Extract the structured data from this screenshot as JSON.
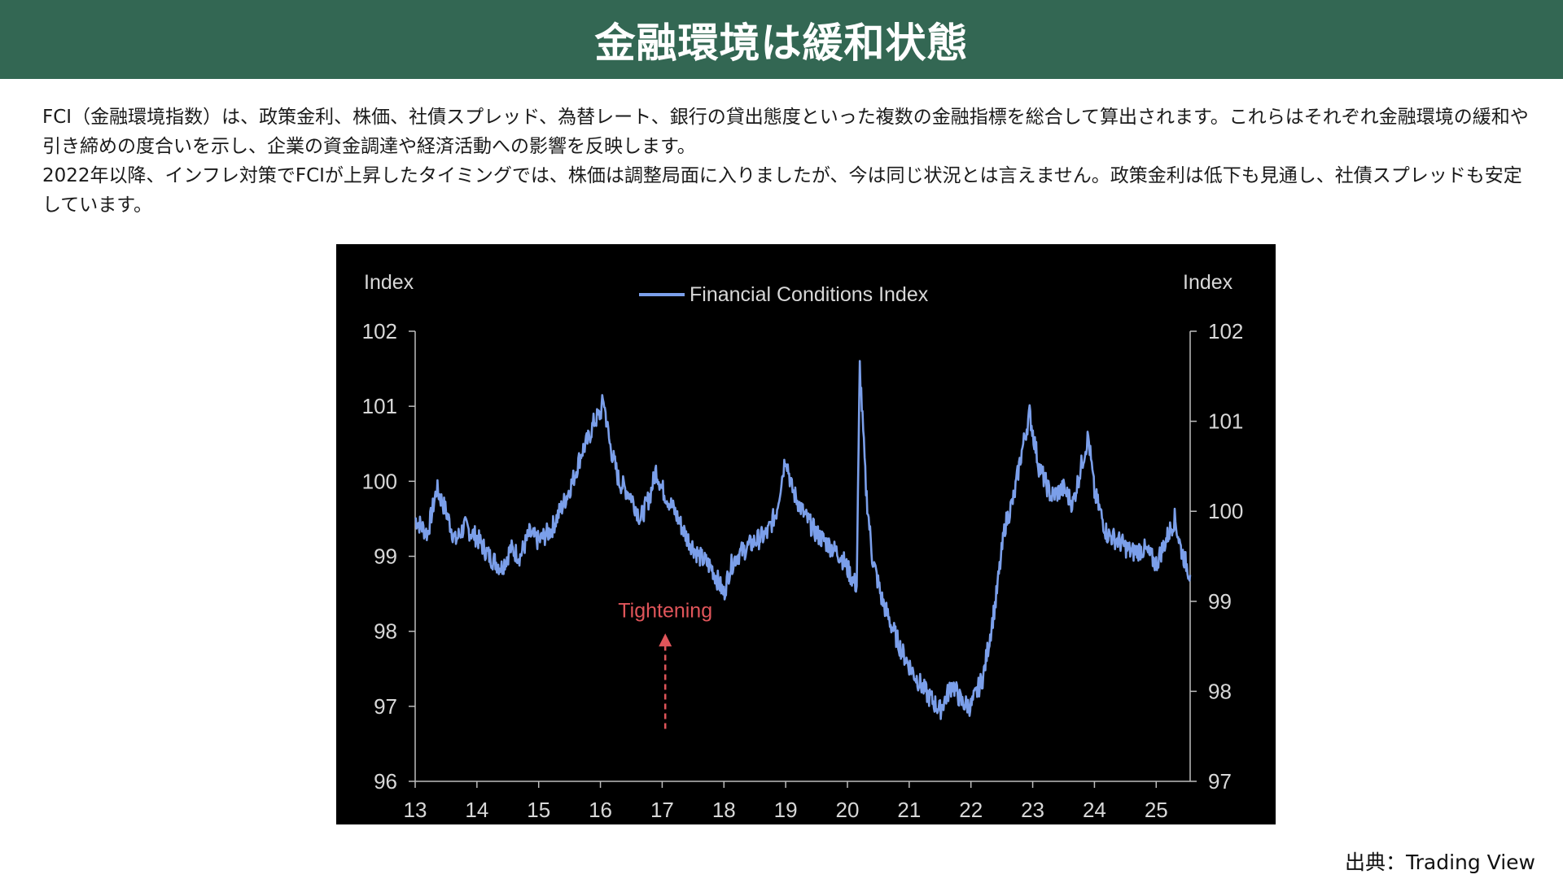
{
  "header": {
    "title": "金融環境は緩和状態"
  },
  "description": {
    "para1": "FCI（金融環境指数）は、政策金利、株価、社債スプレッド、為替レート、銀行の貸出態度といった複数の金融指標を総合して算出されます。これらはそれぞれ金融環境の緩和や引き締めの度合いを示し、企業の資金調達や経済活動への影響を反映します。",
    "para2": "2022年以降、インフレ対策でFCIが上昇したタイミングでは、株価は調整局面に入りましたが、今は同じ状況とは言えません。政策金利は低下も見通し、社債スプレッドも安定しています。"
  },
  "source": "出典：Trading View",
  "colors": {
    "header_bg": "#336753",
    "line": "#7B9FEA",
    "annotation": "#E0555A",
    "chart_bg": "#000000",
    "axis_text": "#d8d8d8"
  },
  "chart_data": {
    "type": "line",
    "title": "",
    "legend": "top-center",
    "grid": false,
    "y_left_label": "Index",
    "y_right_label": "Index",
    "y_left_range": [
      96,
      102
    ],
    "y_right_range": [
      97,
      102
    ],
    "y_left_ticks": [
      "102",
      "101",
      "100",
      "99",
      "98",
      "97",
      "96"
    ],
    "y_right_ticks": [
      "102",
      "101",
      "100",
      "99",
      "98",
      "97"
    ],
    "x_range": [
      13,
      25.55
    ],
    "x_ticks": [
      "13",
      "14",
      "15",
      "16",
      "17",
      "18",
      "19",
      "20",
      "21",
      "22",
      "23",
      "24",
      "25"
    ],
    "annotation": {
      "text": "Tightening",
      "x": 17.05,
      "arrow_from_y": 96.7,
      "arrow_to_y": 97.95
    },
    "series": [
      {
        "name": "Financial Conditions Index",
        "axis": "left",
        "x": [
          13.0,
          13.2,
          13.35,
          13.5,
          13.65,
          13.8,
          14.0,
          14.2,
          14.4,
          14.55,
          14.7,
          14.85,
          15.0,
          15.2,
          15.4,
          15.55,
          15.7,
          15.8,
          15.9,
          16.0,
          16.05,
          16.15,
          16.3,
          16.5,
          16.65,
          16.8,
          16.9,
          17.0,
          17.2,
          17.4,
          17.6,
          17.8,
          18.0,
          18.1,
          18.2,
          18.35,
          18.5,
          18.7,
          18.85,
          19.0,
          19.1,
          19.3,
          19.5,
          19.7,
          19.9,
          20.05,
          20.15,
          20.2,
          20.3,
          20.4,
          20.55,
          20.7,
          20.9,
          21.1,
          21.3,
          21.5,
          21.7,
          21.85,
          22.0,
          22.2,
          22.4,
          22.55,
          22.7,
          22.8,
          22.95,
          23.1,
          23.3,
          23.5,
          23.65,
          23.8,
          23.9,
          24.0,
          24.2,
          24.4,
          24.6,
          24.8,
          25.0,
          25.15,
          25.3,
          25.4,
          25.55
        ],
        "values": [
          99.5,
          99.3,
          99.9,
          99.6,
          99.2,
          99.4,
          99.25,
          99.0,
          98.85,
          99.1,
          99.0,
          99.3,
          99.2,
          99.35,
          99.7,
          100.0,
          100.4,
          100.55,
          100.8,
          100.9,
          101.1,
          100.5,
          100.0,
          99.8,
          99.5,
          99.8,
          100.15,
          99.9,
          99.6,
          99.25,
          99.0,
          98.85,
          98.5,
          98.85,
          99.0,
          99.1,
          99.2,
          99.3,
          99.6,
          100.35,
          99.9,
          99.55,
          99.3,
          99.15,
          99.0,
          98.75,
          98.6,
          101.55,
          99.9,
          99.0,
          98.45,
          98.1,
          97.7,
          97.4,
          97.15,
          96.95,
          97.3,
          97.05,
          97.0,
          97.4,
          98.4,
          99.4,
          99.8,
          100.3,
          100.9,
          100.2,
          99.8,
          99.9,
          99.7,
          100.25,
          100.6,
          99.85,
          99.3,
          99.2,
          99.05,
          99.1,
          98.9,
          99.2,
          99.5,
          99.1,
          98.75
        ]
      }
    ]
  }
}
